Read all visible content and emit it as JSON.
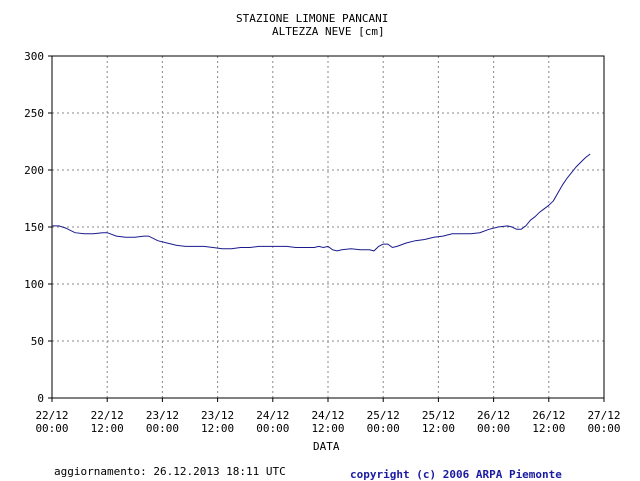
{
  "title_line1": "STAZIONE LIMONE PANCANI",
  "title_line2": "ALTEZZA NEVE [cm]",
  "footer_update": "aggiornamento: 26.12.2013 18:11 UTC",
  "footer_copyright": "copyright (c) 2006 ARPA Piemonte",
  "chart_data": {
    "type": "line",
    "title": "STAZIONE LIMONE PANCANI",
    "subtitle": "ALTEZZA NEVE [cm]",
    "xlabel": "DATA",
    "ylabel": "",
    "ylim": [
      0,
      300
    ],
    "xlim_hours": [
      0,
      120
    ],
    "yticks": [
      0,
      50,
      100,
      150,
      200,
      250,
      300
    ],
    "xticks": [
      {
        "h": 0,
        "line1": "22/12",
        "line2": "00:00"
      },
      {
        "h": 12,
        "line1": "22/12",
        "line2": "12:00"
      },
      {
        "h": 24,
        "line1": "23/12",
        "line2": "00:00"
      },
      {
        "h": 36,
        "line1": "23/12",
        "line2": "12:00"
      },
      {
        "h": 48,
        "line1": "24/12",
        "line2": "00:00"
      },
      {
        "h": 60,
        "line1": "24/12",
        "line2": "12:00"
      },
      {
        "h": 72,
        "line1": "25/12",
        "line2": "00:00"
      },
      {
        "h": 84,
        "line1": "25/12",
        "line2": "12:00"
      },
      {
        "h": 96,
        "line1": "26/12",
        "line2": "00:00"
      },
      {
        "h": 108,
        "line1": "26/12",
        "line2": "12:00"
      },
      {
        "h": 120,
        "line1": "27/12",
        "line2": "00:00"
      }
    ],
    "grid": true,
    "line_color": "#1a1a8c",
    "series": [
      {
        "name": "ALTEZZA NEVE",
        "points": [
          [
            0,
            151
          ],
          [
            1.5,
            151
          ],
          [
            3,
            149
          ],
          [
            5,
            145
          ],
          [
            7,
            144
          ],
          [
            9,
            144
          ],
          [
            11,
            145
          ],
          [
            12,
            145
          ],
          [
            14,
            142
          ],
          [
            16,
            141
          ],
          [
            18,
            141
          ],
          [
            20,
            142
          ],
          [
            21,
            142
          ],
          [
            23,
            138
          ],
          [
            25,
            136
          ],
          [
            27,
            134
          ],
          [
            29,
            133
          ],
          [
            31,
            133
          ],
          [
            33,
            133
          ],
          [
            35,
            132
          ],
          [
            37,
            131
          ],
          [
            39,
            131
          ],
          [
            41,
            132
          ],
          [
            43,
            132
          ],
          [
            45,
            133
          ],
          [
            47,
            133
          ],
          [
            49,
            133
          ],
          [
            51,
            133
          ],
          [
            53,
            132
          ],
          [
            55,
            132
          ],
          [
            57,
            132
          ],
          [
            58,
            133
          ],
          [
            59,
            132
          ],
          [
            60,
            133
          ],
          [
            61,
            130
          ],
          [
            62,
            129
          ],
          [
            63,
            130
          ],
          [
            65,
            131
          ],
          [
            67,
            130
          ],
          [
            68,
            130
          ],
          [
            69,
            130
          ],
          [
            70,
            129
          ],
          [
            71,
            133
          ],
          [
            72,
            135
          ],
          [
            73,
            135
          ],
          [
            74,
            132
          ],
          [
            75,
            133
          ],
          [
            77,
            136
          ],
          [
            79,
            138
          ],
          [
            81,
            139
          ],
          [
            83,
            141
          ],
          [
            85,
            142
          ],
          [
            87,
            144
          ],
          [
            89,
            144
          ],
          [
            91,
            144
          ],
          [
            93,
            145
          ],
          [
            95,
            148
          ],
          [
            97,
            150
          ],
          [
            99,
            151
          ],
          [
            100,
            150
          ],
          [
            101,
            148
          ],
          [
            102,
            148
          ],
          [
            103,
            151
          ],
          [
            104,
            156
          ],
          [
            105,
            159
          ],
          [
            106,
            163
          ],
          [
            107,
            166
          ],
          [
            108,
            169
          ],
          [
            109,
            173
          ],
          [
            110,
            180
          ],
          [
            111,
            187
          ],
          [
            112,
            193
          ],
          [
            113,
            198
          ],
          [
            114,
            203
          ],
          [
            115,
            207
          ],
          [
            116,
            211
          ],
          [
            117,
            214
          ]
        ]
      }
    ]
  }
}
